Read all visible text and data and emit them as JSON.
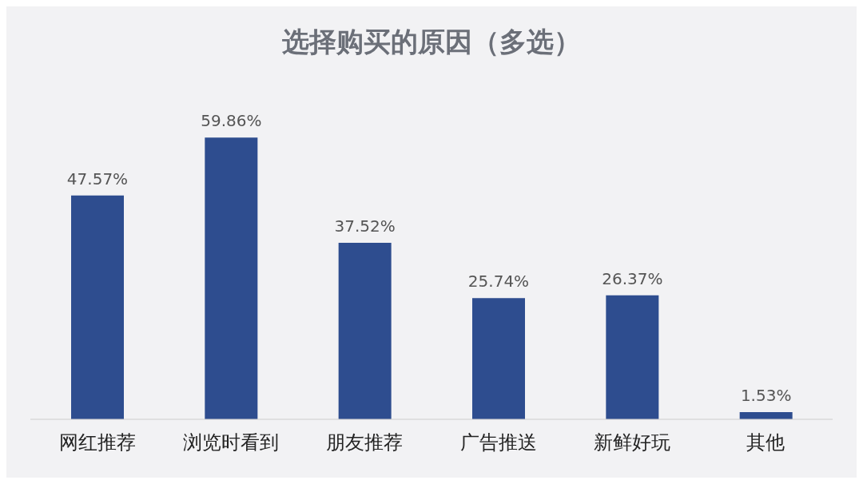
{
  "chart_data": {
    "type": "bar",
    "title": "选择购买的原因（多选）",
    "categories": [
      "网红推荐",
      "浏览时看到",
      "朋友推荐",
      "广告推送",
      "新鲜好玩",
      "其他"
    ],
    "values": [
      47.57,
      59.86,
      37.52,
      25.74,
      26.37,
      1.53
    ],
    "value_labels": [
      "47.57%",
      "59.86%",
      "37.52%",
      "25.74%",
      "26.37%",
      "1.53%"
    ],
    "color": "#2e4d8f",
    "grid": false,
    "legend": false
  }
}
